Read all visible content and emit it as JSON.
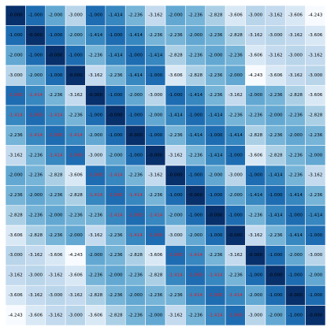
{
  "chart_data": {
    "type": "heatmap",
    "title": "",
    "xlabel": "",
    "ylabel": "",
    "rows": 16,
    "cols": 16,
    "color_scale": {
      "low": "#08306b",
      "high": "#f7fbff",
      "name": "Blues"
    },
    "label_colors": {
      "normal": "#000000",
      "highlight": "#e31a1c"
    },
    "value_format": "3 decimals",
    "values": [
      [
        -0.0,
        -1.0,
        -2.0,
        -3.0,
        -1.0,
        -1.414,
        -2.236,
        -3.162,
        -2.0,
        -2.236,
        -2.828,
        -3.606,
        -3.0,
        -3.162,
        -3.606,
        -4.243
      ],
      [
        -1.0,
        -0.0,
        -1.0,
        -2.0,
        -1.414,
        -1.0,
        -1.414,
        -2.236,
        -2.236,
        -2.0,
        -2.236,
        -2.828,
        -3.162,
        -3.0,
        -3.162,
        -3.606
      ],
      [
        -2.0,
        -1.0,
        -0.0,
        -1.0,
        -2.236,
        -1.414,
        -1.0,
        -1.414,
        -2.828,
        -2.236,
        -2.0,
        -2.236,
        -3.606,
        -3.162,
        -3.0,
        -3.162
      ],
      [
        -3.0,
        -2.0,
        -1.0,
        -0.0,
        -3.162,
        -2.236,
        -1.414,
        -1.0,
        -3.606,
        -2.828,
        -2.236,
        -2.0,
        -4.243,
        -3.606,
        -3.162,
        -3.0
      ],
      [
        -1.0,
        -1.414,
        -2.236,
        -3.162,
        -0.0,
        -1.0,
        -2.0,
        -3.0,
        -1.0,
        -1.414,
        -2.236,
        -3.162,
        -2.0,
        -2.236,
        -2.828,
        -3.606
      ],
      [
        -1.414,
        -1.0,
        -1.414,
        -2.236,
        -1.0,
        -0.0,
        -1.0,
        -2.0,
        -1.414,
        -1.0,
        -1.414,
        -2.236,
        -2.236,
        -2.0,
        -2.236,
        -2.828
      ],
      [
        -2.236,
        -1.414,
        -1.0,
        -1.414,
        -2.0,
        -1.0,
        -0.0,
        -1.0,
        -2.236,
        -1.414,
        -1.0,
        -1.414,
        -2.828,
        -2.236,
        -2.0,
        -2.236
      ],
      [
        -3.162,
        -2.236,
        -1.414,
        -1.0,
        -3.0,
        -2.0,
        -1.0,
        -0.0,
        -3.162,
        -2.236,
        -1.414,
        -1.0,
        -3.606,
        -2.828,
        -2.236,
        -2.0
      ],
      [
        -2.0,
        -2.236,
        -2.828,
        -3.606,
        -1.0,
        -1.414,
        -2.236,
        -3.162,
        -0.0,
        -1.0,
        -2.0,
        -3.0,
        -1.0,
        -1.414,
        -2.236,
        -3.162
      ],
      [
        -2.236,
        -2.0,
        -2.236,
        -2.828,
        -1.414,
        -1.0,
        -1.414,
        -2.236,
        -1.0,
        -0.0,
        -1.0,
        -2.0,
        -1.414,
        -1.0,
        -1.414,
        -2.236
      ],
      [
        -2.828,
        -2.236,
        -2.0,
        -2.236,
        -2.236,
        -1.414,
        -1.0,
        -1.414,
        -2.0,
        -1.0,
        -0.0,
        -1.0,
        -2.236,
        -1.414,
        -1.0,
        -1.414
      ],
      [
        -3.606,
        -2.828,
        -2.236,
        -2.0,
        -3.162,
        -2.236,
        -1.414,
        -1.0,
        -3.0,
        -2.0,
        -1.0,
        -0.0,
        -3.162,
        -2.236,
        -1.414,
        -1.0
      ],
      [
        -3.0,
        -3.162,
        -3.606,
        -4.243,
        -2.0,
        -2.236,
        -2.828,
        -3.606,
        -1.0,
        -1.414,
        -2.236,
        -3.162,
        -0.0,
        -1.0,
        -2.0,
        -3.0
      ],
      [
        -3.162,
        -3.0,
        -3.162,
        -3.606,
        -2.236,
        -2.0,
        -2.236,
        -2.828,
        -1.414,
        -1.0,
        -1.414,
        -2.236,
        -1.0,
        -0.0,
        -1.0,
        -2.0
      ],
      [
        -3.606,
        -3.162,
        -3.0,
        -3.162,
        -2.828,
        -2.236,
        -2.0,
        -2.236,
        -2.236,
        -1.414,
        -1.0,
        -1.414,
        -2.0,
        -1.0,
        -0.0,
        -1.0
      ],
      [
        -4.243,
        -3.606,
        -3.162,
        -3.0,
        -3.606,
        -2.828,
        -2.236,
        -2.0,
        -3.162,
        -2.236,
        -1.414,
        -1.0,
        -3.0,
        -2.0,
        -1.0,
        -0.0
      ]
    ],
    "labels": [
      [
        "-0.000",
        "-1.000",
        "-2.000",
        "-3.000",
        "-1.000",
        "-1.414",
        "-2.236",
        "-3.162",
        "-2.000",
        "-2.236",
        "-2.828",
        "-3.606",
        "-3.000",
        "-3.162",
        "-3.606",
        "-4.243"
      ],
      [
        "-1.000",
        "-0.000",
        "-1.000",
        "-2.000",
        "-1.414",
        "-1.000",
        "-1.414",
        "-2.236",
        "-2.236",
        "-2.000",
        "-2.236",
        "-2.828",
        "-3.162",
        "-3.000",
        "-3.162",
        "-3.606"
      ],
      [
        "-2.000",
        "-1.000",
        "-0.000",
        "-1.000",
        "-2.236",
        "-1.414",
        "-1.000",
        "-1.414",
        "-2.828",
        "-2.236",
        "-2.000",
        "-2.236",
        "-3.606",
        "-3.162",
        "-3.000",
        "-3.162"
      ],
      [
        "-3.000",
        "-2.000",
        "-1.000",
        "-0.000",
        "-3.162",
        "-2.236",
        "-1.414",
        "-1.000",
        "-3.606",
        "-2.828",
        "-2.236",
        "-2.000",
        "-4.243",
        "-3.606",
        "-3.162",
        "-3.000"
      ],
      [
        "-1.000",
        "-1.414",
        "-2.236",
        "-3.162",
        "-0.000",
        "-1.000",
        "-2.000",
        "-3.000",
        "-1.000",
        "-1.414",
        "-2.236",
        "-3.162",
        "-2.000",
        "-2.236",
        "-2.828",
        "-3.606"
      ],
      [
        "-1.414",
        "-1.000",
        "-1.414",
        "-2.236",
        "-1.000",
        "-0.000",
        "-1.000",
        "-2.000",
        "-1.414",
        "-1.000",
        "-1.414",
        "-2.236",
        "-2.236",
        "-2.000",
        "-2.236",
        "-2.828"
      ],
      [
        "-2.236",
        "-1.414",
        "-1.000",
        "-1.414",
        "-2.000",
        "-1.000",
        "-0.000",
        "-1.000",
        "-2.236",
        "-1.414",
        "-1.000",
        "-1.414",
        "-2.828",
        "-2.236",
        "-2.000",
        "-2.236"
      ],
      [
        "-3.162",
        "-2.236",
        "-1.414",
        "-1.000",
        "-3.000",
        "-2.000",
        "-1.000",
        "-0.000",
        "-3.162",
        "-2.236",
        "-1.414",
        "-1.000",
        "-3.606",
        "-2.828",
        "-2.236",
        "-2.000"
      ],
      [
        "-2.000",
        "-2.236",
        "-2.828",
        "-3.606",
        "-1.000",
        "-1.414",
        "-2.236",
        "-3.162",
        "-0.000",
        "-1.000",
        "-2.000",
        "-3.000",
        "-1.000",
        "-1.414",
        "-2.236",
        "-3.162"
      ],
      [
        "-2.236",
        "-2.000",
        "-2.236",
        "-2.828",
        "-1.414",
        "-1.000",
        "-1.414",
        "-2.236",
        "-1.000",
        "-0.000",
        "-1.000",
        "-2.000",
        "-1.414",
        "-1.000",
        "-1.414",
        "-2.236"
      ],
      [
        "-2.828",
        "-2.236",
        "-2.000",
        "-2.236",
        "-2.236",
        "-1.414",
        "-1.000",
        "-1.414",
        "-2.000",
        "-1.000",
        "-0.000",
        "-1.000",
        "-2.236",
        "-1.414",
        "-1.000",
        "-1.414"
      ],
      [
        "-3.606",
        "-2.828",
        "-2.236",
        "-2.000",
        "-3.162",
        "-2.236",
        "-1.414",
        "-1.000",
        "-3.000",
        "-2.000",
        "-1.000",
        "-0.000",
        "-3.162",
        "-2.236",
        "-1.414",
        "-1.000"
      ],
      [
        "-3.000",
        "-3.162",
        "-3.606",
        "-4.243",
        "-2.000",
        "-2.236",
        "-2.828",
        "-3.606",
        "-1.000",
        "-1.414",
        "-2.236",
        "-3.162",
        "-0.000",
        "-1.000",
        "-2.000",
        "-3.000"
      ],
      [
        "-3.162",
        "-3.000",
        "-3.162",
        "-3.606",
        "-2.236",
        "-2.000",
        "-2.236",
        "-2.828",
        "-1.414",
        "-1.000",
        "-1.414",
        "-2.236",
        "-1.000",
        "-0.000",
        "-1.000",
        "-2.000"
      ],
      [
        "-3.606",
        "-3.162",
        "-3.000",
        "-3.162",
        "-2.828",
        "-2.236",
        "-2.000",
        "-2.236",
        "-2.236",
        "-1.414",
        "-1.000",
        "-1.414",
        "-2.000",
        "-1.000",
        "-0.000",
        "-1.000"
      ],
      [
        "-4.243",
        "-3.606",
        "-3.162",
        "-3.000",
        "-3.606",
        "-2.828",
        "-2.236",
        "-2.000",
        "-3.162",
        "-2.236",
        "-1.414",
        "-1.000",
        "-3.000",
        "-2.000",
        "-1.000",
        "-0.000"
      ]
    ],
    "highlighted": [
      [
        0,
        0,
        0,
        0,
        0,
        0,
        0,
        0,
        0,
        0,
        0,
        0,
        0,
        0,
        0,
        0
      ],
      [
        0,
        0,
        0,
        0,
        0,
        0,
        0,
        0,
        0,
        0,
        0,
        0,
        0,
        0,
        0,
        0
      ],
      [
        0,
        0,
        0,
        0,
        0,
        0,
        0,
        0,
        0,
        0,
        0,
        0,
        0,
        0,
        0,
        0
      ],
      [
        0,
        0,
        0,
        0,
        0,
        0,
        0,
        0,
        0,
        0,
        0,
        0,
        0,
        0,
        0,
        0
      ],
      [
        1,
        1,
        0,
        0,
        0,
        0,
        0,
        0,
        0,
        0,
        0,
        0,
        0,
        0,
        0,
        0
      ],
      [
        1,
        1,
        1,
        0,
        0,
        0,
        0,
        0,
        0,
        0,
        0,
        0,
        0,
        0,
        0,
        0
      ],
      [
        0,
        1,
        1,
        1,
        0,
        0,
        0,
        0,
        0,
        0,
        0,
        0,
        0,
        0,
        0,
        0
      ],
      [
        0,
        0,
        1,
        1,
        0,
        0,
        0,
        0,
        0,
        0,
        0,
        0,
        0,
        0,
        0,
        0
      ],
      [
        0,
        0,
        0,
        0,
        1,
        1,
        0,
        0,
        0,
        0,
        0,
        0,
        0,
        0,
        0,
        0
      ],
      [
        0,
        0,
        0,
        0,
        1,
        1,
        1,
        0,
        0,
        0,
        0,
        0,
        0,
        0,
        0,
        0
      ],
      [
        0,
        0,
        0,
        0,
        0,
        1,
        1,
        1,
        0,
        0,
        0,
        0,
        0,
        0,
        0,
        0
      ],
      [
        0,
        0,
        0,
        0,
        0,
        0,
        1,
        1,
        0,
        0,
        0,
        0,
        0,
        0,
        0,
        0
      ],
      [
        0,
        0,
        0,
        0,
        0,
        0,
        0,
        0,
        1,
        1,
        0,
        0,
        0,
        0,
        0,
        0
      ],
      [
        0,
        0,
        0,
        0,
        0,
        0,
        0,
        0,
        1,
        1,
        1,
        0,
        0,
        0,
        0,
        0
      ],
      [
        0,
        0,
        0,
        0,
        0,
        0,
        0,
        0,
        0,
        1,
        1,
        1,
        0,
        0,
        0,
        0
      ],
      [
        0,
        0,
        0,
        0,
        0,
        0,
        0,
        0,
        0,
        0,
        1,
        1,
        0,
        0,
        0,
        0
      ]
    ]
  }
}
